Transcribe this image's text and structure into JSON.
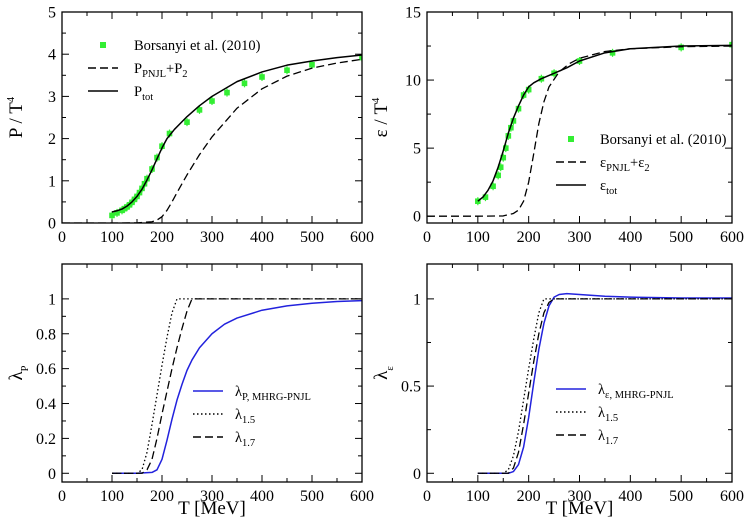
{
  "chart_data": [
    {
      "id": "pressure",
      "type": "line",
      "xlabel": "",
      "ylabel": "P / T4",
      "ylabel_parts": {
        "main": "P / T",
        "sup": "4"
      },
      "xlim": [
        0,
        600
      ],
      "ylim": [
        0,
        5
      ],
      "xticks": [
        0,
        100,
        200,
        300,
        400,
        500,
        600
      ],
      "yticks": [
        0,
        1,
        2,
        3,
        4,
        5
      ],
      "legend_position": "top-left",
      "series": [
        {
          "name": "Borsanyi et al. (2010)",
          "style": "marker",
          "color": "#33ee33",
          "x": [
            100,
            110,
            120,
            125,
            130,
            135,
            140,
            145,
            150,
            155,
            160,
            165,
            170,
            180,
            190,
            200,
            215,
            250,
            275,
            300,
            330,
            365,
            400,
            450,
            500,
            600
          ],
          "y": [
            0.18,
            0.24,
            0.3,
            0.34,
            0.38,
            0.43,
            0.49,
            0.56,
            0.63,
            0.72,
            0.82,
            0.93,
            1.05,
            1.28,
            1.55,
            1.82,
            2.12,
            2.39,
            2.68,
            2.89,
            3.09,
            3.31,
            3.46,
            3.62,
            3.75,
            3.92
          ]
        },
        {
          "name": "PPNJL+P2",
          "name_parts": {
            "main": "P",
            "sub": "PNJL",
            "mid": "+P",
            "sub2": "2"
          },
          "style": "dashed",
          "color": "#000000",
          "x": [
            0,
            100,
            150,
            180,
            190,
            200,
            210,
            220,
            230,
            250,
            275,
            300,
            350,
            400,
            450,
            500,
            550,
            600
          ],
          "y": [
            0,
            0,
            0.002,
            0.03,
            0.07,
            0.15,
            0.3,
            0.5,
            0.72,
            1.14,
            1.62,
            2.04,
            2.72,
            3.18,
            3.48,
            3.67,
            3.79,
            3.88
          ]
        },
        {
          "name": "Ptot",
          "name_parts": {
            "main": "P",
            "sub": "tot"
          },
          "style": "solid",
          "color": "#000000",
          "x": [
            100,
            110,
            120,
            130,
            140,
            150,
            160,
            170,
            180,
            190,
            200,
            210,
            225,
            250,
            275,
            300,
            350,
            400,
            450,
            500,
            550,
            600
          ],
          "y": [
            0.26,
            0.29,
            0.33,
            0.4,
            0.5,
            0.63,
            0.8,
            1.02,
            1.26,
            1.52,
            1.78,
            2.0,
            2.22,
            2.52,
            2.78,
            3.0,
            3.35,
            3.58,
            3.74,
            3.84,
            3.92,
            3.98
          ]
        }
      ]
    },
    {
      "id": "energy",
      "type": "line",
      "xlabel": "",
      "ylabel": "ε / T4",
      "ylabel_parts": {
        "main": "ε / T",
        "sup": "4"
      },
      "xlim": [
        0,
        600
      ],
      "ylim": [
        -0.5,
        15
      ],
      "xticks": [
        0,
        100,
        200,
        300,
        400,
        500,
        600
      ],
      "yticks": [
        0,
        5,
        10,
        15
      ],
      "legend_position": "center-right",
      "series": [
        {
          "name": "Borsanyi et al. (2010)",
          "style": "marker",
          "color": "#33ee33",
          "x": [
            100,
            115,
            130,
            140,
            145,
            150,
            155,
            160,
            165,
            170,
            180,
            190,
            200,
            225,
            250,
            300,
            365,
            500,
            600
          ],
          "y": [
            1.1,
            1.4,
            2.2,
            3.0,
            3.6,
            4.3,
            5.0,
            5.9,
            6.5,
            7.0,
            7.9,
            8.9,
            9.3,
            10.1,
            10.5,
            11.4,
            12.0,
            12.4,
            12.6
          ]
        },
        {
          "name": "εPNJL+ε2",
          "name_parts": {
            "main": "ε",
            "sub": "PNJL",
            "mid": "+ε",
            "sub2": "2"
          },
          "style": "dashed",
          "color": "#000000",
          "x": [
            0,
            100,
            150,
            170,
            180,
            190,
            200,
            210,
            220,
            230,
            240,
            260,
            280,
            300,
            350,
            400,
            500,
            600
          ],
          "y": [
            0,
            0,
            0.02,
            0.2,
            0.45,
            1.1,
            2.5,
            4.6,
            6.8,
            8.4,
            9.5,
            10.6,
            11.2,
            11.6,
            12.1,
            12.3,
            12.45,
            12.5
          ]
        },
        {
          "name": "εtot",
          "name_parts": {
            "main": "ε",
            "sub": "tot"
          },
          "style": "solid",
          "color": "#000000",
          "x": [
            100,
            110,
            120,
            130,
            140,
            150,
            160,
            170,
            180,
            190,
            200,
            210,
            225,
            250,
            275,
            300,
            350,
            400,
            500,
            600
          ],
          "y": [
            1.1,
            1.4,
            1.9,
            2.6,
            3.6,
            4.8,
            6.1,
            7.2,
            8.1,
            8.9,
            9.5,
            9.8,
            10.1,
            10.5,
            10.9,
            11.4,
            12.0,
            12.3,
            12.5,
            12.55
          ]
        }
      ]
    },
    {
      "id": "lambda-p",
      "type": "line",
      "xlabel": "T [MeV]",
      "ylabel": "λP",
      "ylabel_parts": {
        "main": "λ",
        "sub": "P"
      },
      "xlim": [
        0,
        600
      ],
      "ylim": [
        -0.05,
        1.2
      ],
      "xticks": [
        0,
        100,
        200,
        300,
        400,
        500,
        600
      ],
      "yticks": [
        0,
        0.2,
        0.4,
        0.6,
        0.8,
        1
      ],
      "legend_position": "bottom-right",
      "series": [
        {
          "name": "λP, MHRG-PNJL",
          "name_parts": {
            "main": "λ",
            "sub": "P, MHRG-PNJL"
          },
          "style": "solid",
          "color": "#2222dd",
          "x": [
            100,
            150,
            180,
            190,
            200,
            210,
            220,
            230,
            240,
            250,
            260,
            275,
            300,
            325,
            350,
            400,
            450,
            500,
            550,
            600
          ],
          "y": [
            0,
            0,
            0.005,
            0.02,
            0.08,
            0.19,
            0.31,
            0.42,
            0.51,
            0.59,
            0.65,
            0.72,
            0.8,
            0.855,
            0.89,
            0.935,
            0.96,
            0.975,
            0.985,
            0.99
          ]
        },
        {
          "name": "λ1.5",
          "name_parts": {
            "main": "λ",
            "sub": "1.5"
          },
          "style": "dotted",
          "color": "#000000",
          "x": [
            100,
            150,
            160,
            170,
            180,
            190,
            200,
            210,
            220,
            230,
            600
          ],
          "y": [
            0,
            0,
            0.02,
            0.12,
            0.28,
            0.45,
            0.62,
            0.78,
            0.92,
            1.0,
            1.0
          ]
        },
        {
          "name": "λ1.7",
          "name_parts": {
            "main": "λ",
            "sub": "1.7"
          },
          "style": "dashed",
          "color": "#000000",
          "x": [
            100,
            160,
            170,
            180,
            190,
            200,
            210,
            220,
            230,
            240,
            250,
            260,
            600
          ],
          "y": [
            0,
            0,
            0.02,
            0.08,
            0.2,
            0.34,
            0.47,
            0.6,
            0.72,
            0.83,
            0.93,
            1.0,
            1.0
          ]
        }
      ]
    },
    {
      "id": "lambda-e",
      "type": "line",
      "xlabel": "T [MeV]",
      "ylabel": "λε",
      "ylabel_parts": {
        "main": "λ",
        "sub": "ε"
      },
      "xlim": [
        0,
        600
      ],
      "ylim": [
        -0.05,
        1.2
      ],
      "xticks": [
        0,
        100,
        200,
        300,
        400,
        500,
        600
      ],
      "yticks": [
        0,
        0.5,
        1
      ],
      "legend_position": "bottom-right",
      "series": [
        {
          "name": "λε, MHRG-PNJL",
          "name_parts": {
            "main": "λ",
            "sub": "ε, MHRG-PNJL"
          },
          "style": "solid",
          "color": "#2222dd",
          "x": [
            100,
            160,
            170,
            180,
            190,
            200,
            210,
            220,
            230,
            240,
            250,
            260,
            275,
            300,
            350,
            400,
            500,
            600
          ],
          "y": [
            0,
            0,
            0.01,
            0.05,
            0.15,
            0.32,
            0.52,
            0.71,
            0.86,
            0.96,
            1.01,
            1.025,
            1.03,
            1.025,
            1.015,
            1.01,
            1.005,
            1.005
          ]
        },
        {
          "name": "λ1.5",
          "name_parts": {
            "main": "λ",
            "sub": "1.5"
          },
          "style": "dotted",
          "color": "#000000",
          "x": [
            100,
            150,
            160,
            170,
            180,
            190,
            200,
            210,
            220,
            230,
            600
          ],
          "y": [
            0,
            0,
            0.02,
            0.1,
            0.24,
            0.42,
            0.6,
            0.77,
            0.92,
            1.0,
            1.0
          ]
        },
        {
          "name": "λ1.7",
          "name_parts": {
            "main": "λ",
            "sub": "1.7"
          },
          "style": "dashed",
          "color": "#000000",
          "x": [
            100,
            160,
            170,
            180,
            190,
            200,
            210,
            220,
            230,
            240,
            250,
            600
          ],
          "y": [
            0,
            0,
            0.03,
            0.12,
            0.28,
            0.46,
            0.64,
            0.8,
            0.92,
            0.98,
            1.0,
            1.0
          ]
        }
      ]
    }
  ]
}
